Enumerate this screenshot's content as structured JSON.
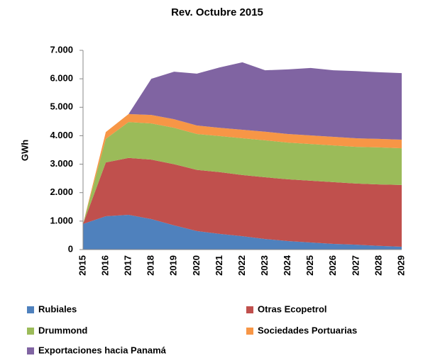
{
  "chart_data": {
    "type": "stacked_area",
    "title": "Rev. Octubre 2015",
    "y_label": "GWh",
    "categories": [
      "2015",
      "2016",
      "2017",
      "2018",
      "2019",
      "2020",
      "2021",
      "2022",
      "2023",
      "2024",
      "2025",
      "2026",
      "2027",
      "2028",
      "2029"
    ],
    "series": [
      {
        "name": "Rubiales",
        "color": "#4f81bd",
        "values": [
          900,
          1170,
          1220,
          1070,
          850,
          650,
          550,
          470,
          370,
          300,
          250,
          200,
          170,
          130,
          100
        ]
      },
      {
        "name": "Otras Ecopetrol",
        "color": "#c0504d",
        "values": [
          0,
          1890,
          2000,
          2090,
          2150,
          2150,
          2170,
          2150,
          2170,
          2170,
          2170,
          2170,
          2150,
          2160,
          2170
        ]
      },
      {
        "name": "Drummond",
        "color": "#9bbb59",
        "values": [
          0,
          830,
          1260,
          1270,
          1280,
          1260,
          1270,
          1290,
          1300,
          1290,
          1290,
          1290,
          1290,
          1300,
          1290
        ]
      },
      {
        "name": "Sociedades Portuarias",
        "color": "#f79646",
        "values": [
          0,
          240,
          280,
          300,
          300,
          300,
          290,
          300,
          300,
          300,
          300,
          300,
          300,
          300,
          300
        ]
      },
      {
        "name": "Exportaciones hacia Panamá",
        "color": "#8064a2",
        "values": [
          0,
          0,
          0,
          1270,
          1670,
          1820,
          2120,
          2370,
          2160,
          2270,
          2370,
          2340,
          2360,
          2340,
          2340
        ]
      }
    ],
    "ylim": [
      0,
      7000
    ],
    "yticks": [
      0,
      {
        "value": 1000,
        "label": "1.000"
      },
      {
        "value": 2000,
        "label": "2.000"
      },
      {
        "value": 3000,
        "label": "3.000"
      },
      {
        "value": 4000,
        "label": "4.000"
      },
      {
        "value": 5000,
        "label": "5.000"
      },
      {
        "value": 6000,
        "label": "6.000"
      },
      {
        "value": 7000,
        "label": "7.000"
      }
    ]
  }
}
